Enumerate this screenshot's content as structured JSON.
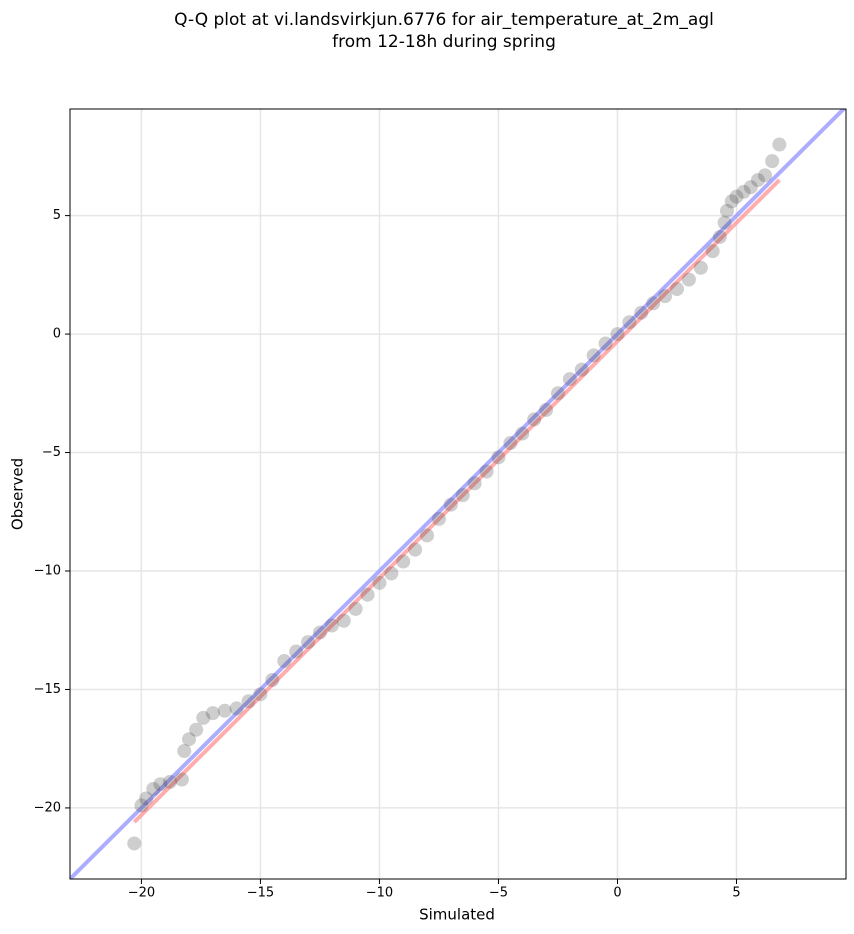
{
  "chart_data": {
    "type": "qq",
    "title": "Q-Q plot at vi.landsvirkjun.6776 for air_temperature_at_2m_agl",
    "subtitle": "from 12-18h during spring",
    "x_label": "Simulated",
    "y_label": "Observed",
    "xlim": [
      -23,
      9.6
    ],
    "ylim": [
      -23,
      9.5
    ],
    "xticks": [
      {
        "value": -20,
        "label": "−20"
      },
      {
        "value": -15,
        "label": "−15"
      },
      {
        "value": -10,
        "label": "−10"
      },
      {
        "value": -5,
        "label": "−5"
      },
      0,
      5
    ],
    "yticks": [
      {
        "value": -20,
        "label": "−20"
      },
      {
        "value": -15,
        "label": "−15"
      },
      {
        "value": -10,
        "label": "−10"
      },
      {
        "value": -5,
        "label": "−5"
      },
      0,
      5
    ],
    "grid": true,
    "lines": [
      {
        "color": "#9999ff",
        "x": [
          -23,
          9.6
        ],
        "y": [
          -23,
          9.6
        ]
      },
      {
        "color": "#ff9999",
        "x": [
          -20.3,
          6.8
        ],
        "y": [
          -20.6,
          6.5
        ]
      }
    ],
    "points": {
      "color": "#3a3a3a",
      "x": [
        -20.3,
        -20,
        -19.8,
        -19.5,
        -19.2,
        -18.8,
        -18.3,
        -18.2,
        -18,
        -17.7,
        -17.4,
        -17,
        -16.5,
        -16,
        -15.5,
        -15,
        -14.5,
        -14,
        -13.5,
        -13,
        -12.5,
        -12,
        -11.5,
        -11,
        -10.5,
        -10,
        -9.5,
        -9,
        -8.5,
        -8,
        -7.5,
        -7,
        -6.5,
        -6,
        -5.5,
        -5,
        -4.5,
        -4,
        -3.5,
        -3,
        -2.5,
        -2,
        -1.5,
        -1,
        -0.5,
        0,
        0.5,
        1,
        1.5,
        2,
        2.5,
        3,
        3.5,
        4,
        4.3,
        4.5,
        4.6,
        4.8,
        5,
        5.3,
        5.6,
        5.9,
        6.2,
        6.5,
        6.8
      ],
      "y": [
        -21.5,
        -19.9,
        -19.6,
        -19.2,
        -19,
        -18.9,
        -18.8,
        -17.6,
        -17.1,
        -16.7,
        -16.2,
        -16,
        -15.9,
        -15.8,
        -15.5,
        -15.2,
        -14.6,
        -13.8,
        -13.4,
        -13,
        -12.6,
        -12.3,
        -12.1,
        -11.6,
        -11,
        -10.5,
        -10.1,
        -9.6,
        -9.1,
        -8.5,
        -7.8,
        -7.2,
        -6.8,
        -6.3,
        -5.8,
        -5.2,
        -4.6,
        -4.2,
        -3.6,
        -3.2,
        -2.5,
        -1.9,
        -1.5,
        -0.9,
        -0.4,
        0,
        0.5,
        0.9,
        1.3,
        1.6,
        1.9,
        2.3,
        2.8,
        3.5,
        4.1,
        4.7,
        5.2,
        5.6,
        5.8,
        6,
        6.2,
        6.5,
        6.7,
        7.3,
        8
      ]
    }
  }
}
